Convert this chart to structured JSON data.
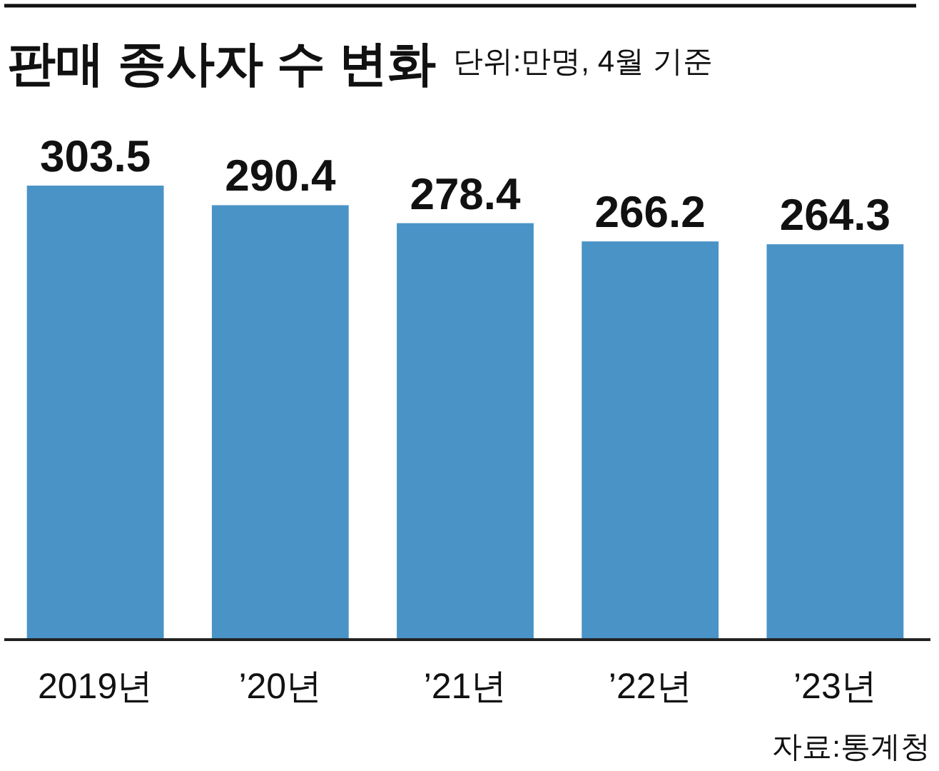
{
  "chart_data": {
    "type": "bar",
    "title": "판매 종사자 수 변화",
    "subtitle": "단위:만명, 4월 기준",
    "categories": [
      "2019년",
      "’20년",
      "’21년",
      "’22년",
      "’23년"
    ],
    "values": [
      303.5,
      290.4,
      278.4,
      266.2,
      264.3
    ],
    "color": "#4a93c6",
    "data_labels": true,
    "annotations": [
      "자료:통계청"
    ]
  }
}
